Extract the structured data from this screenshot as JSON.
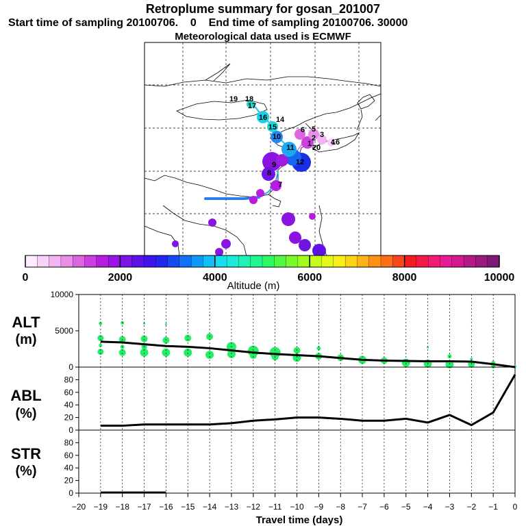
{
  "title": "Retroplume summary for gosan_201007",
  "subtitle": "Start time of sampling 20100706.    0    End time of sampling 20100706. 30000",
  "met_line": "Meteorological data used is ECMWF",
  "colorbar": {
    "label": "Altitude  (m)",
    "ticks": [
      "0",
      "2000",
      "4000",
      "6000",
      "8000",
      "10000"
    ],
    "min": 0,
    "max": 10000,
    "colors": [
      "#fdecfd",
      "#f8d2f8",
      "#f2b4f2",
      "#e88ee9",
      "#dc66e2",
      "#cd3fe0",
      "#b71de0",
      "#9a14e3",
      "#7b14e6",
      "#5a12e8",
      "#3d14ec",
      "#2326f0",
      "#1648f4",
      "#1170f6",
      "#0e98f7",
      "#10bff7",
      "#14def2",
      "#1deadb",
      "#1ff2b6",
      "#22f58e",
      "#30f766",
      "#52f944",
      "#79fb2a",
      "#a1fc1d",
      "#c6fb1a",
      "#e6f919",
      "#fbee18",
      "#fdd217",
      "#fdb317",
      "#fd9118",
      "#fd6e1a",
      "#fc441d",
      "#f51a1f",
      "#f31a4a",
      "#f21a74",
      "#e91a93",
      "#d01a8e",
      "#b41a85",
      "#9a1a7c",
      "#7e1a74"
    ]
  },
  "map": {
    "labels": [
      {
        "t": "19",
        "c": "#22d6c6"
      },
      {
        "t": "18",
        "c": "#22d6c6"
      },
      {
        "t": "17",
        "c": "#22d6c6"
      },
      {
        "t": "16",
        "c": "#19c3e8"
      },
      {
        "t": "15",
        "c": "#19c3e8"
      },
      {
        "t": "14",
        "c": "#19c3e8"
      },
      {
        "t": "10",
        "c": "#1a7cf0"
      },
      {
        "t": "11",
        "c": "#29a0f4"
      },
      {
        "t": "12",
        "c": "#2532ee"
      },
      {
        "t": "9",
        "c": "#7b14e6"
      },
      {
        "t": "8",
        "c": "#9a14e3"
      },
      {
        "t": "7",
        "c": "#cd3fe0"
      },
      {
        "t": "6",
        "c": "#e88ee9"
      },
      {
        "t": "5",
        "c": "#f2b4f2"
      },
      {
        "t": "4",
        "c": "#f8d2f8"
      },
      {
        "t": "3",
        "c": "#f2b4f2"
      },
      {
        "t": "2",
        "c": "#e88ee9"
      },
      {
        "t": "1",
        "c": "#dc66e2"
      },
      {
        "t": "20",
        "c": "#f2b4f2"
      },
      {
        "t": "16",
        "c": "#e88ee9"
      }
    ]
  },
  "panels": {
    "alt": {
      "label1": "ALT",
      "label2": "(m)",
      "yticks": [
        "10000",
        "5000",
        "0"
      ]
    },
    "abl": {
      "label1": "ABL",
      "label2": "(%)",
      "yticks": [
        "80",
        "60",
        "40",
        "20",
        "0"
      ]
    },
    "str": {
      "label1": "STR",
      "label2": "(%)",
      "yticks": [
        "80",
        "60",
        "40",
        "20",
        "0"
      ]
    }
  },
  "xaxis": {
    "label": "Travel time (days)",
    "ticks": [
      "-20",
      "-19",
      "-18",
      "-17",
      "-16",
      "-15",
      "-14",
      "-13",
      "-12",
      "-11",
      "-10",
      "-9",
      "-8",
      "-7",
      "-6",
      "-5",
      "-4",
      "-3",
      "-2",
      "-1",
      "0"
    ]
  },
  "chart_data": [
    {
      "type": "line",
      "title": "ALT",
      "xlabel": "Travel time (days)",
      "ylabel": "(m)",
      "xlim": [
        -20,
        0
      ],
      "ylim": [
        0,
        10000
      ],
      "x": [
        -19,
        -18,
        -17,
        -16,
        -15,
        -14,
        -13,
        -12,
        -11,
        -10,
        -9,
        -8,
        -7,
        -6,
        -5,
        -4,
        -3,
        -2,
        -1,
        0
      ],
      "series": [
        {
          "name": "mean altitude",
          "values": [
            3500,
            3400,
            3150,
            2900,
            2800,
            2600,
            2300,
            2000,
            1800,
            1650,
            1500,
            1250,
            1000,
            900,
            850,
            800,
            800,
            750,
            400,
            0
          ]
        }
      ],
      "scatter": {
        "color": "#22ee66",
        "points": [
          {
            "x": -19,
            "y": 6000,
            "s": 2.5
          },
          {
            "x": -19,
            "y": 4000,
            "s": 4.5
          },
          {
            "x": -19,
            "y": 3000,
            "s": 2.5
          },
          {
            "x": -19,
            "y": 2100,
            "s": 4.5
          },
          {
            "x": -18,
            "y": 6100,
            "s": 2.5
          },
          {
            "x": -18,
            "y": 3800,
            "s": 5
          },
          {
            "x": -18,
            "y": 2800,
            "s": 3
          },
          {
            "x": -18,
            "y": 2000,
            "s": 5
          },
          {
            "x": -17,
            "y": 6000,
            "s": 1.5
          },
          {
            "x": -17,
            "y": 3900,
            "s": 5
          },
          {
            "x": -17,
            "y": 2800,
            "s": 4
          },
          {
            "x": -17,
            "y": 2000,
            "s": 6
          },
          {
            "x": -16,
            "y": 5900,
            "s": 1.5
          },
          {
            "x": -16,
            "y": 3700,
            "s": 5
          },
          {
            "x": -16,
            "y": 2000,
            "s": 6
          },
          {
            "x": -15,
            "y": 6000,
            "s": 1
          },
          {
            "x": -15,
            "y": 4000,
            "s": 5
          },
          {
            "x": -15,
            "y": 2000,
            "s": 6
          },
          {
            "x": -14,
            "y": 7200,
            "s": 1
          },
          {
            "x": -14,
            "y": 4200,
            "s": 5
          },
          {
            "x": -14,
            "y": 1700,
            "s": 6
          },
          {
            "x": -13,
            "y": 7400,
            "s": 1
          },
          {
            "x": -13,
            "y": 2800,
            "s": 7
          },
          {
            "x": -13,
            "y": 1800,
            "s": 6
          },
          {
            "x": -12,
            "y": 7600,
            "s": 1
          },
          {
            "x": -12,
            "y": 2200,
            "s": 8
          },
          {
            "x": -12,
            "y": 1600,
            "s": 5
          },
          {
            "x": -11,
            "y": 7500,
            "s": 1
          },
          {
            "x": -11,
            "y": 2000,
            "s": 8
          },
          {
            "x": -11,
            "y": 1400,
            "s": 5
          },
          {
            "x": -10,
            "y": 2300,
            "s": 5
          },
          {
            "x": -10,
            "y": 1300,
            "s": 6
          },
          {
            "x": -9,
            "y": 2600,
            "s": 3
          },
          {
            "x": -9,
            "y": 1500,
            "s": 5
          },
          {
            "x": -8,
            "y": 6500,
            "s": 1
          },
          {
            "x": -8,
            "y": 1300,
            "s": 5
          },
          {
            "x": -7,
            "y": 1000,
            "s": 6
          },
          {
            "x": -6,
            "y": 900,
            "s": 5
          },
          {
            "x": -5,
            "y": 2300,
            "s": 1
          },
          {
            "x": -5,
            "y": 600,
            "s": 6
          },
          {
            "x": -4,
            "y": 2700,
            "s": 1.5
          },
          {
            "x": -4,
            "y": 500,
            "s": 6
          },
          {
            "x": -3,
            "y": 1500,
            "s": 3
          },
          {
            "x": -3,
            "y": 400,
            "s": 6
          },
          {
            "x": -2,
            "y": 1100,
            "s": 2
          },
          {
            "x": -2,
            "y": 400,
            "s": 5
          },
          {
            "x": -1,
            "y": 600,
            "s": 3
          },
          {
            "x": -1,
            "y": 100,
            "s": 3
          },
          {
            "x": 0,
            "y": 100,
            "s": 2
          }
        ]
      }
    },
    {
      "type": "line",
      "title": "ABL",
      "xlabel": "Travel time (days)",
      "ylabel": "(%)",
      "xlim": [
        -20,
        0
      ],
      "ylim": [
        0,
        100
      ],
      "x": [
        -19,
        -18,
        -17,
        -16,
        -15,
        -14,
        -13,
        -12,
        -11,
        -10,
        -9,
        -8,
        -7,
        -6,
        -5,
        -4,
        -3,
        -2,
        -1,
        0
      ],
      "series": [
        {
          "name": "ABL fraction",
          "values": [
            7,
            7,
            9,
            9,
            9,
            9,
            11,
            15,
            17,
            20,
            20,
            18,
            15,
            15,
            18,
            12,
            24,
            8,
            28,
            88
          ]
        }
      ]
    },
    {
      "type": "line",
      "title": "STR",
      "xlabel": "Travel time (days)",
      "ylabel": "(%)",
      "xlim": [
        -20,
        0
      ],
      "ylim": [
        0,
        100
      ],
      "x": [
        -19,
        -18,
        -17,
        -16
      ],
      "series": [
        {
          "name": "STR fraction",
          "values": [
            1,
            1,
            1,
            1
          ]
        }
      ]
    }
  ]
}
